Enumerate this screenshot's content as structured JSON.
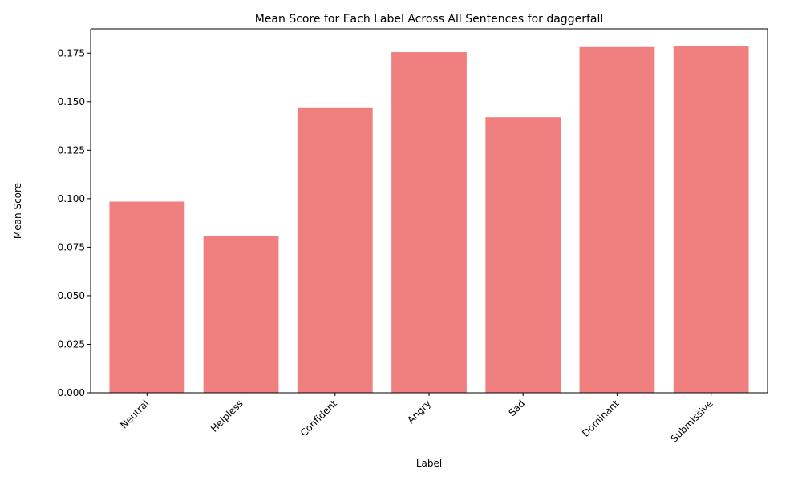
{
  "chart_data": {
    "type": "bar",
    "title": "Mean Score for Each Label Across All Sentences for daggerfall",
    "xlabel": "Label",
    "ylabel": "Mean Score",
    "categories": [
      "Neutral",
      "Helpless",
      "Confident",
      "Angry",
      "Sad",
      "Dominant",
      "Submissive"
    ],
    "values": [
      0.0985,
      0.0808,
      0.1467,
      0.1755,
      0.142,
      0.1781,
      0.1788
    ],
    "ylim": [
      0,
      0.1875
    ],
    "yticks": [
      "0.000",
      "0.025",
      "0.050",
      "0.075",
      "0.100",
      "0.125",
      "0.150",
      "0.175"
    ],
    "bar_color": "#f08080",
    "grid": false,
    "legend": "none"
  }
}
